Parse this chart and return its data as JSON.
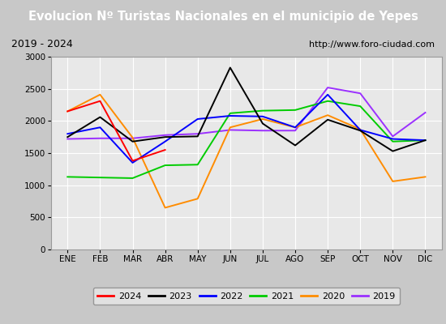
{
  "title": "Evolucion Nº Turistas Nacionales en el municipio de Yepes",
  "subtitle_left": "2019 - 2024",
  "subtitle_right": "http://www.foro-ciudad.com",
  "months": [
    "ENE",
    "FEB",
    "MAR",
    "ABR",
    "MAY",
    "JUN",
    "JUL",
    "AGO",
    "SEP",
    "OCT",
    "NOV",
    "DIC"
  ],
  "series": {
    "2024": {
      "color": "#ff0000",
      "data": [
        2150,
        2310,
        1380,
        1550,
        null,
        null,
        null,
        null,
        null,
        null,
        null,
        null
      ]
    },
    "2023": {
      "color": "#000000",
      "data": [
        1750,
        2060,
        1680,
        1750,
        1760,
        2830,
        1960,
        1620,
        2020,
        1850,
        1530,
        1700
      ]
    },
    "2022": {
      "color": "#0000ff",
      "data": [
        1800,
        1900,
        1350,
        1680,
        2030,
        2080,
        2070,
        1900,
        2410,
        1860,
        1720,
        1700
      ]
    },
    "2021": {
      "color": "#00cc00",
      "data": [
        1130,
        1120,
        1110,
        1310,
        1320,
        2120,
        2160,
        2170,
        2310,
        2230,
        1680,
        1700
      ]
    },
    "2020": {
      "color": "#ff8c00",
      "data": [
        2150,
        2410,
        1740,
        650,
        790,
        1900,
        2030,
        1900,
        2090,
        1870,
        1060,
        1130
      ]
    },
    "2019": {
      "color": "#9b30ff",
      "data": [
        1720,
        1730,
        1730,
        1780,
        1800,
        1860,
        1850,
        1850,
        2520,
        2430,
        1760,
        2130
      ]
    }
  },
  "ylim": [
    0,
    3000
  ],
  "yticks": [
    0,
    500,
    1000,
    1500,
    2000,
    2500,
    3000
  ],
  "title_bg": "#4472a8",
  "title_color": "#ffffff",
  "subtitle_bg": "#d4d4d4",
  "plot_bg": "#e8e8e8",
  "fig_bg": "#c8c8c8",
  "grid_color": "#ffffff",
  "legend_order": [
    "2024",
    "2023",
    "2022",
    "2021",
    "2020",
    "2019"
  ]
}
